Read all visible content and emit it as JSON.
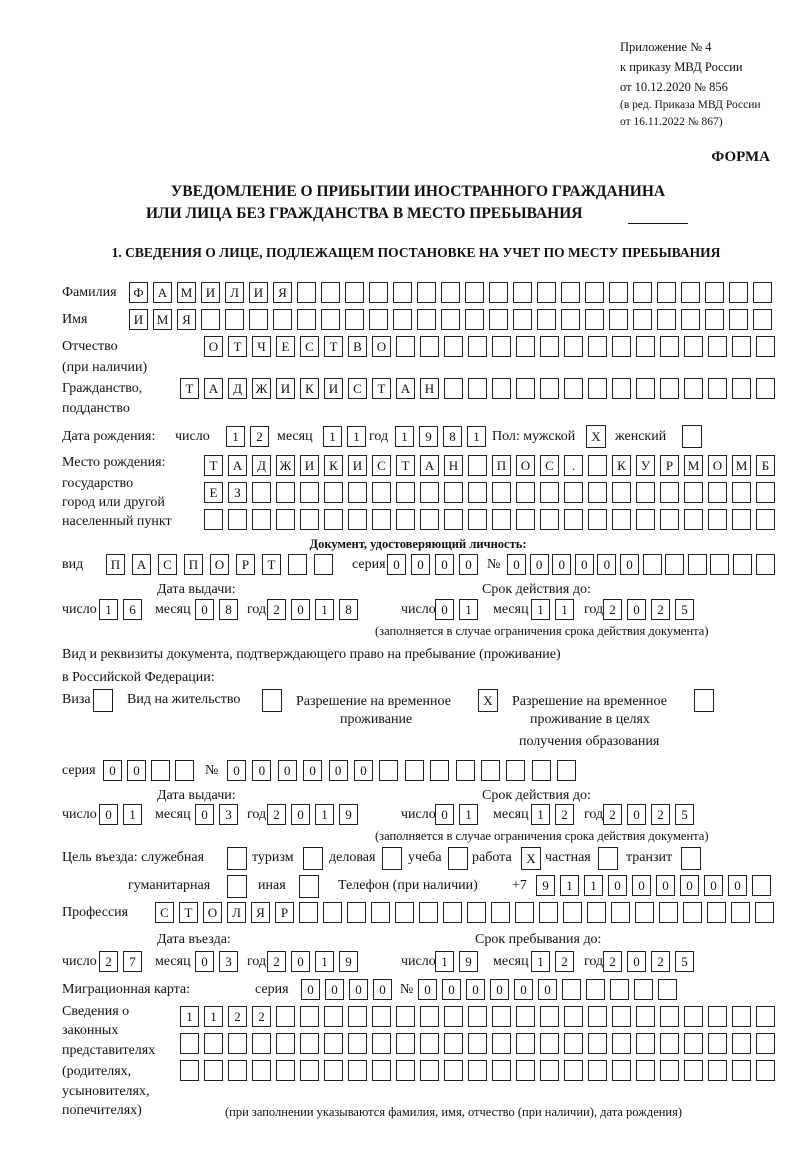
{
  "appendix": {
    "line1": "Приложение № 4",
    "line2": "к приказу МВД России",
    "line3": "от 10.12.2020 № 856",
    "line4": "(в ред. Приказа МВД России",
    "line5": "от 16.11.2022 № 867)"
  },
  "form_label": "ФОРМА",
  "title": {
    "line1": "УВЕДОМЛЕНИЕ О ПРИБЫТИИ ИНОСТРАННОГО ГРАЖДАНИНА",
    "line2": "ИЛИ ЛИЦА БЕЗ ГРАЖДАНСТВА В МЕСТО ПРЕБЫВАНИЯ"
  },
  "section1": "1. СВЕДЕНИЯ О ЛИЦЕ, ПОДЛЕЖАЩЕМ ПОСТАНОВКЕ НА УЧЕТ ПО МЕСТУ ПРЕБЫВАНИЯ",
  "labels": {
    "surname": "Фамилия",
    "name": "Имя",
    "patronymic": "Отчество",
    "patronymic2": "(при наличии)",
    "citizenship": "Гражданство,",
    "citizenship2": "подданство",
    "birth_date": "Дата рождения:",
    "day": "число",
    "month": "месяц",
    "year": "год",
    "sex_male": "Пол: мужской",
    "sex_female": "женский",
    "birthplace1": "Место рождения:",
    "birthplace2": "государство",
    "birthplace3": "город или другой",
    "birthplace4": "населенный пункт",
    "id_doc": "Документ, удостоверяющий личность:",
    "doc_type": "вид",
    "series": "серия",
    "number": "№",
    "issue_date": "Дата выдачи:",
    "valid_until": "Срок действия до:",
    "validity_note": "(заполняется в случае ограничения срока действия документа)",
    "right_doc1": "Вид и реквизиты документа, подтверждающего право на пребывание (проживание)",
    "right_doc2": "в Российской Федерации:",
    "visa": "Виза",
    "residence_permit": "Вид на жительство",
    "temp_residence1": "Разрешение на временное",
    "temp_residence2": "проживание",
    "temp_edu1": "Разрешение на временное",
    "temp_edu2": "проживание в целях",
    "temp_edu3": "получения образования",
    "purpose": "Цель въезда: служебная",
    "tourism": "туризм",
    "business": "деловая",
    "study": "учеба",
    "work": "работа",
    "private": "частная",
    "transit": "транзит",
    "humanitarian": "гуманитарная",
    "other": "иная",
    "phone": "Телефон (при наличии)",
    "phone_prefix": "+7",
    "profession": "Профессия",
    "entry_date": "Дата въезда:",
    "stay_until": "Срок пребывания до:",
    "migration_card": "Миграционная карта:",
    "legal1": "Сведения о",
    "legal2": "законных",
    "legal3": "представителях",
    "legal4": "(родителях,",
    "legal5": "усыновителях,",
    "legal6": "попечителях)",
    "legal_note": "(при заполнении указываются фамилия, имя, отчество (при наличии), дата рождения)"
  },
  "fields": {
    "surname": [
      "Ф",
      "А",
      "М",
      "И",
      "Л",
      "И",
      "Я",
      "",
      "",
      "",
      "",
      "",
      "",
      "",
      "",
      "",
      "",
      "",
      "",
      "",
      "",
      "",
      "",
      "",
      "",
      "",
      ""
    ],
    "name": [
      "И",
      "М",
      "Я",
      "",
      "",
      "",
      "",
      "",
      "",
      "",
      "",
      "",
      "",
      "",
      "",
      "",
      "",
      "",
      "",
      "",
      "",
      "",
      "",
      "",
      "",
      "",
      ""
    ],
    "patronymic": [
      "О",
      "Т",
      "Ч",
      "Е",
      "С",
      "Т",
      "В",
      "О",
      "",
      "",
      "",
      "",
      "",
      "",
      "",
      "",
      "",
      "",
      "",
      "",
      "",
      "",
      "",
      ""
    ],
    "citizenship": [
      "Т",
      "А",
      "Д",
      "Ж",
      "И",
      "К",
      "И",
      "С",
      "Т",
      "А",
      "Н",
      "",
      "",
      "",
      "",
      "",
      "",
      "",
      "",
      "",
      "",
      "",
      "",
      "",
      ""
    ],
    "birth_day": [
      "1",
      "2"
    ],
    "birth_month": [
      "1",
      "1"
    ],
    "birth_year": [
      "1",
      "9",
      "8",
      "1"
    ],
    "sex_male": "X",
    "sex_female": "",
    "birthplace_row1": [
      "Т",
      "А",
      "Д",
      "Ж",
      "И",
      "К",
      "И",
      "С",
      "Т",
      "А",
      "Н",
      "",
      "П",
      "О",
      "С",
      ".",
      "",
      "К",
      "У",
      "Р",
      "М",
      "О",
      "М",
      "Б"
    ],
    "birthplace_row2": [
      "Е",
      "З",
      "",
      "",
      "",
      "",
      "",
      "",
      "",
      "",
      "",
      "",
      "",
      "",
      "",
      "",
      "",
      "",
      "",
      "",
      "",
      "",
      "",
      ""
    ],
    "birthplace_row3": [
      "",
      "",
      "",
      "",
      "",
      "",
      "",
      "",
      "",
      "",
      "",
      "",
      "",
      "",
      "",
      "",
      "",
      "",
      "",
      "",
      "",
      "",
      "",
      ""
    ],
    "doc_type": [
      "П",
      "А",
      "С",
      "П",
      "О",
      "Р",
      "Т",
      "",
      ""
    ],
    "doc_series": [
      "0",
      "0",
      "0",
      "0"
    ],
    "doc_number": [
      "0",
      "0",
      "0",
      "0",
      "0",
      "0",
      "",
      "",
      "",
      "",
      "",
      ""
    ],
    "doc_issue_day": [
      "1",
      "6"
    ],
    "doc_issue_month": [
      "0",
      "8"
    ],
    "doc_issue_year": [
      "2",
      "0",
      "1",
      "8"
    ],
    "doc_valid_day": [
      "0",
      "1"
    ],
    "doc_valid_month": [
      "1",
      "1"
    ],
    "doc_valid_year": [
      "2",
      "0",
      "2",
      "5"
    ],
    "visa": "",
    "residence_permit": "",
    "temp_residence": "X",
    "temp_edu": "",
    "right_series": [
      "0",
      "0",
      "",
      ""
    ],
    "right_number": [
      "0",
      "0",
      "0",
      "0",
      "0",
      "0",
      "",
      "",
      "",
      "",
      "",
      "",
      "",
      ""
    ],
    "right_issue_day": [
      "0",
      "1"
    ],
    "right_issue_month": [
      "0",
      "3"
    ],
    "right_issue_year": [
      "2",
      "0",
      "1",
      "9"
    ],
    "right_valid_day": [
      "0",
      "1"
    ],
    "right_valid_month": [
      "1",
      "2"
    ],
    "right_valid_year": [
      "2",
      "0",
      "2",
      "5"
    ],
    "purpose_official": "",
    "purpose_tourism": "",
    "purpose_business": "",
    "purpose_study": "",
    "purpose_work": "X",
    "purpose_private": "",
    "purpose_transit": "",
    "purpose_humanitarian": "",
    "purpose_other": "",
    "phone": [
      "9",
      "1",
      "1",
      "0",
      "0",
      "0",
      "0",
      "0",
      "0",
      ""
    ],
    "profession": [
      "С",
      "Т",
      "О",
      "Л",
      "Я",
      "Р",
      "",
      "",
      "",
      "",
      "",
      "",
      "",
      "",
      "",
      "",
      "",
      "",
      "",
      "",
      "",
      "",
      "",
      "",
      "",
      ""
    ],
    "entry_day": [
      "2",
      "7"
    ],
    "entry_month": [
      "0",
      "3"
    ],
    "entry_year": [
      "2",
      "0",
      "1",
      "9"
    ],
    "stay_day": [
      "1",
      "9"
    ],
    "stay_month": [
      "1",
      "2"
    ],
    "stay_year": [
      "2",
      "0",
      "2",
      "5"
    ],
    "migration_series": [
      "0",
      "0",
      "0",
      "0"
    ],
    "migration_number": [
      "0",
      "0",
      "0",
      "0",
      "0",
      "0",
      "",
      "",
      "",
      "",
      ""
    ],
    "legal_row1": [
      "1",
      "1",
      "2",
      "2",
      "",
      "",
      "",
      "",
      "",
      "",
      "",
      "",
      "",
      "",
      "",
      "",
      "",
      "",
      "",
      "",
      "",
      "",
      "",
      "",
      ""
    ],
    "legal_row2": [
      "",
      "",
      "",
      "",
      "",
      "",
      "",
      "",
      "",
      "",
      "",
      "",
      "",
      "",
      "",
      "",
      "",
      "",
      "",
      "",
      "",
      "",
      "",
      "",
      ""
    ],
    "legal_row3": [
      "",
      "",
      "",
      "",
      "",
      "",
      "",
      "",
      "",
      "",
      "",
      "",
      "",
      "",
      "",
      "",
      "",
      "",
      "",
      "",
      "",
      "",
      "",
      "",
      ""
    ]
  }
}
